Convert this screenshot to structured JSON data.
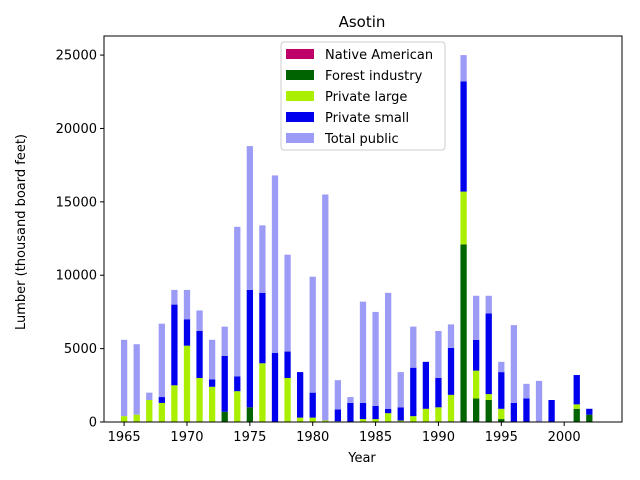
{
  "chart_data": {
    "type": "bar",
    "stacked": true,
    "title": "Asotin",
    "xlabel": "Year",
    "ylabel": "Lumber (thousand board feet)",
    "xlim": [
      1963.4,
      2004.6
    ],
    "ylim": [
      0,
      26300
    ],
    "x_ticks": [
      1965,
      1970,
      1975,
      1980,
      1985,
      1990,
      1995,
      2000
    ],
    "y_ticks": [
      0,
      5000,
      10000,
      15000,
      20000,
      25000
    ],
    "grid": false,
    "legend_position": "upper center",
    "x": [
      1965,
      1966,
      1967,
      1968,
      1969,
      1970,
      1971,
      1972,
      1973,
      1974,
      1975,
      1976,
      1977,
      1978,
      1979,
      1980,
      1981,
      1982,
      1983,
      1984,
      1985,
      1986,
      1987,
      1988,
      1989,
      1990,
      1991,
      1992,
      1993,
      1994,
      1995,
      1996,
      1997,
      1998,
      1999,
      2000,
      2001,
      2002
    ],
    "series": [
      {
        "name": "Native American",
        "color": "#c0006a",
        "values": [
          0,
          0,
          0,
          0,
          0,
          0,
          0,
          0,
          0,
          0,
          0,
          0,
          0,
          0,
          0,
          0,
          0,
          0,
          0,
          0,
          0,
          0,
          0,
          0,
          0,
          0,
          0,
          0,
          0,
          0,
          0,
          0,
          0,
          0,
          0,
          0,
          0,
          0
        ]
      },
      {
        "name": "Forest industry",
        "color": "#006400",
        "values": [
          0,
          0,
          0,
          0,
          0,
          0,
          0,
          0,
          700,
          0,
          1000,
          0,
          0,
          0,
          0,
          0,
          0,
          0,
          0,
          0,
          0,
          0,
          0,
          0,
          0,
          0,
          50,
          12100,
          1600,
          1500,
          200,
          0,
          0,
          0,
          0,
          0,
          900,
          500
        ]
      },
      {
        "name": "Private large",
        "color": "#aaee00",
        "values": [
          400,
          500,
          1500,
          1300,
          2500,
          5200,
          3000,
          2400,
          0,
          2100,
          0,
          4000,
          0,
          3000,
          300,
          300,
          100,
          50,
          0,
          200,
          200,
          600,
          100,
          400,
          900,
          1000,
          1800,
          3600,
          1900,
          400,
          700,
          0,
          0,
          0,
          0,
          0,
          300,
          0
        ]
      },
      {
        "name": "Private small",
        "color": "#0000ee",
        "values": [
          0,
          0,
          0,
          400,
          5500,
          1800,
          3200,
          500,
          3800,
          1000,
          8000,
          4800,
          4700,
          1800,
          3100,
          1700,
          0,
          800,
          1300,
          1100,
          900,
          300,
          900,
          3300,
          3200,
          2000,
          3200,
          7500,
          2100,
          5500,
          2500,
          1300,
          1600,
          0,
          1500,
          0,
          2000,
          400
        ]
      },
      {
        "name": "Total public",
        "color": "#9c9cf6",
        "values": [
          5200,
          4800,
          500,
          5000,
          1000,
          2000,
          1400,
          2700,
          2000,
          10200,
          9800,
          4600,
          12100,
          6600,
          0,
          7900,
          15400,
          2000,
          400,
          6900,
          6400,
          7900,
          2400,
          2800,
          0,
          3200,
          1600,
          1800,
          3000,
          1200,
          700,
          5300,
          1000,
          2800,
          0,
          0,
          0,
          0
        ]
      }
    ]
  }
}
